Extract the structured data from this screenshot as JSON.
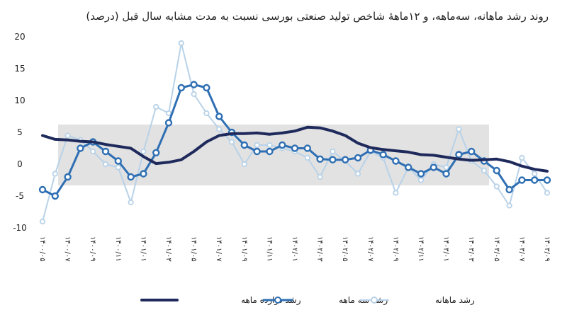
{
  "chart_data": {
    "type": "line",
    "title": "روند رشد ماهانه، سه‌ماهه، و ۱۲ماههٔ شاخص تولید صنعتی بورسی نسبت به مدت مشابه سال قبل (درصد)",
    "xlabel": "",
    "ylabel": "",
    "ylim": [
      -10,
      20
    ],
    "y_ticks": [
      "20",
      "15",
      "10",
      "5",
      "0",
      "-5",
      "-10"
    ],
    "y_tick_values": [
      20,
      15,
      10,
      5,
      0,
      -5,
      -10
    ],
    "grid": false,
    "legend_position": "bottom",
    "x": [
      "۱۴۰۰/۰۵",
      "۱۴۰۰/۰۶",
      "۱۴۰۰/۰۷",
      "۱۴۰۰/۰۸",
      "۱۴۰۰/۰۹",
      "۱۴۰۰/۱۰",
      "۱۴۰۰/۱۱",
      "۱۴۰۰/۱۲",
      "۱۴۰۱/۰۱",
      "۱۴۰۱/۰۲",
      "۱۴۰۱/۰۳",
      "۱۴۰۱/۰۴",
      "۱۴۰۱/۰۵",
      "۱۴۰۱/۰۶",
      "۱۴۰۱/۰۷",
      "۱۴۰۱/۰۸",
      "۱۴۰۱/۰۹",
      "۱۴۰۱/۱۰",
      "۱۴۰۱/۱۱",
      "۱۴۰۱/۱۲",
      "۱۴۰۲/۰۱",
      "۱۴۰۲/۰۲",
      "۱۴۰۲/۰۳",
      "۱۴۰۲/۰۴",
      "۱۴۰۲/۰۵",
      "۱۴۰۲/۰۶",
      "۱۴۰۲/۰۷",
      "۱۴۰۲/۰۸",
      "۱۴۰۲/۰۹",
      "۱۴۰۲/۱۰",
      "۱۴۰۲/۱۱",
      "۱۴۰۲/۱۲",
      "۱۴۰۳/۰۱",
      "۱۴۰۳/۰۲",
      "۱۴۰۳/۰۳",
      "۱۴۰۳/۰۴",
      "۱۴۰۳/۰۵",
      "۱۴۰۳/۰۶",
      "۱۴۰۳/۰۷",
      "۱۴۰۳/۰۸",
      "۱۴۰۳/۰۹"
    ],
    "x_ticks": [
      "۱۴۰۰/۰۵",
      "۱۴۰۰/۰۷",
      "۱۴۰۰/۰۹",
      "۱۴۰۰/۱۱",
      "۱۴۰۱/۰۱",
      "۱۴۰۱/۰۳",
      "۱۴۰۱/۰۵",
      "۱۴۰۱/۰۷",
      "۱۴۰۱/۰۹",
      "۱۴۰۱/۱۱",
      "۱۴۰۲/۰۱",
      "۱۴۰۲/۰۳",
      "۱۴۰۲/۰۵",
      "۱۴۰۲/۰۷",
      "۱۴۰۲/۰۹",
      "۱۴۰۲/۱۱",
      "۱۴۰۳/۰۱",
      "۱۴۰۳/۰۳",
      "۱۴۰۳/۰۵",
      "۱۴۰۳/۰۷",
      "۱۴۰۳/۰۹"
    ],
    "series": [
      {
        "name": "رشد دوازده ماهه",
        "color": "#1f2a5c",
        "markers": false,
        "values": [
          4.5,
          3.9,
          3.8,
          3.6,
          3.5,
          3.1,
          2.8,
          2.5,
          1.2,
          0.1,
          0.3,
          0.7,
          2.0,
          3.5,
          4.5,
          4.8,
          4.8,
          4.9,
          4.7,
          4.9,
          5.2,
          5.8,
          5.7,
          5.2,
          4.5,
          3.3,
          2.6,
          2.3,
          2.1,
          1.9,
          1.5,
          1.4,
          1.1,
          0.8,
          0.6,
          0.7,
          0.8,
          0.4,
          -0.3,
          -0.8,
          -1.1
        ]
      },
      {
        "name": "رشد سه ماهه",
        "color": "#2f6fb3",
        "markers": true,
        "values": [
          -4.0,
          -5.0,
          -2.0,
          2.5,
          3.5,
          2.0,
          0.5,
          -2.0,
          -1.5,
          1.8,
          6.5,
          12.0,
          12.5,
          12.0,
          7.5,
          5.0,
          3.0,
          2.0,
          2.0,
          3.0,
          2.5,
          2.5,
          0.8,
          0.7,
          0.7,
          1.0,
          2.2,
          1.5,
          0.5,
          -0.5,
          -1.5,
          -0.5,
          -1.5,
          1.5,
          2.0,
          0.5,
          -1.0,
          -4.0,
          -2.5,
          -2.5,
          -2.5
        ]
      },
      {
        "name": "رشد ماهانه",
        "color": "#b8d2e8",
        "markers": true,
        "values": [
          -9.0,
          -1.5,
          4.5,
          3.8,
          2.0,
          0.0,
          -0.5,
          -6.0,
          2.0,
          9.0,
          8.0,
          19.0,
          11.0,
          8.0,
          5.5,
          3.5,
          0.0,
          3.0,
          3.0,
          2.5,
          2.0,
          1.0,
          -2.0,
          2.0,
          0.5,
          -1.5,
          2.0,
          1.0,
          -4.5,
          -0.5,
          -2.5,
          0.0,
          -0.5,
          5.5,
          0.5,
          -1.0,
          -3.5,
          -6.5,
          1.0,
          -1.5,
          -4.5
        ]
      }
    ]
  }
}
